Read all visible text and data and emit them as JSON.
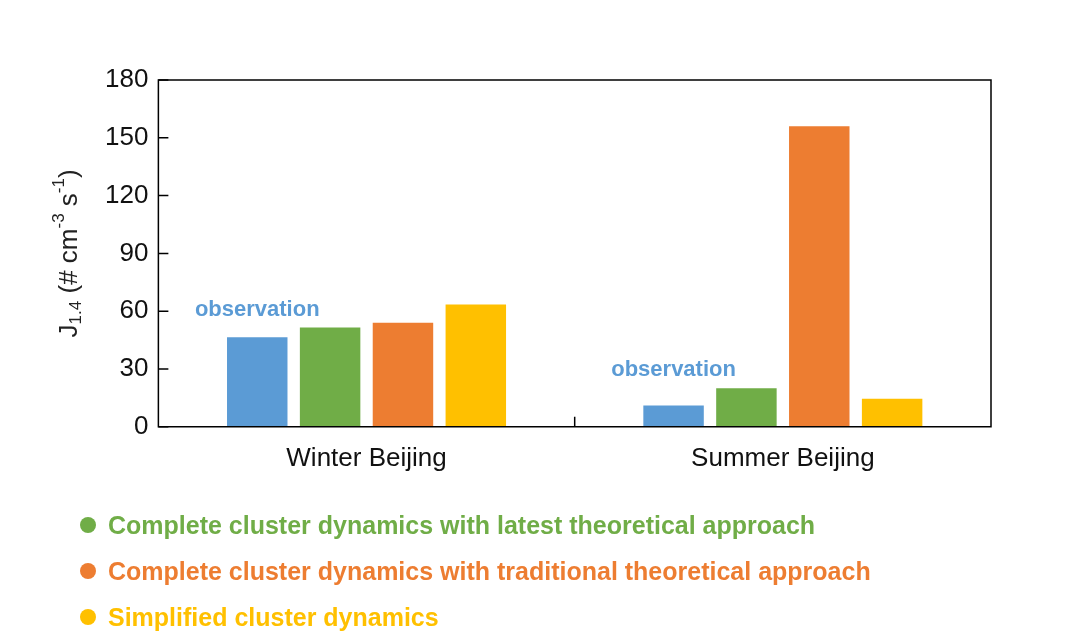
{
  "chart_data": {
    "type": "bar",
    "ylabel": "J$_{1.4}$ (# cm$^{-3}$ s$^{-1}$)",
    "categories": [
      "Winter Beijing",
      "Summer Beijing"
    ],
    "series": [
      {
        "color": "#5b9bd5",
        "values": [
          46.5,
          11
        ]
      },
      {
        "name": "Complete cluster dynamics with latest theoretical approach",
        "color": "#70ad47",
        "values": [
          51.5,
          20
        ]
      },
      {
        "name": "Complete cluster dynamics with traditional theoretical approach",
        "color": "#ed7d31",
        "values": [
          54,
          156
        ]
      },
      {
        "name": "Simplified cluster dynamics",
        "color": "#ffc000",
        "values": [
          63.5,
          14.5
        ]
      }
    ],
    "ylim": [
      0,
      180
    ],
    "yticks": [
      0,
      30,
      60,
      90,
      120,
      150,
      180
    ],
    "grid": false,
    "legend": "bottom",
    "annotations": [
      "observation",
      "observation"
    ]
  }
}
